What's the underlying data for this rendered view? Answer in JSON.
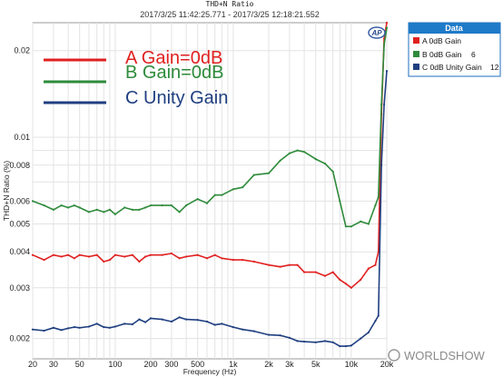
{
  "chart_data": {
    "type": "line",
    "title": "THD+N Ratio",
    "subtitle": "2017/3/25 11:42:25.771 - 2017/3/25 12:18:21.552",
    "xlabel": "Frequency (Hz)",
    "ylabel": "THD+N Ratio (%)",
    "x_scale": "log",
    "y_scale": "log",
    "xlim": [
      20,
      20000
    ],
    "ylim": [
      0.0017,
      0.025
    ],
    "grid": true,
    "x_ticks": [
      {
        "value": 20,
        "label": "20"
      },
      {
        "value": 30,
        "label": "30"
      },
      {
        "value": 50,
        "label": "50"
      },
      {
        "value": 100,
        "label": "100"
      },
      {
        "value": 200,
        "label": "200"
      },
      {
        "value": 300,
        "label": "300"
      },
      {
        "value": 500,
        "label": "500"
      },
      {
        "value": 1000,
        "label": "1k"
      },
      {
        "value": 2000,
        "label": "2k"
      },
      {
        "value": 3000,
        "label": "3k"
      },
      {
        "value": 5000,
        "label": "5k"
      },
      {
        "value": 10000,
        "label": "10k"
      },
      {
        "value": 20000,
        "label": "20k"
      }
    ],
    "y_ticks": [
      {
        "value": 0.002,
        "label": "0.002"
      },
      {
        "value": 0.003,
        "label": "0.003"
      },
      {
        "value": 0.004,
        "label": "0.004"
      },
      {
        "value": 0.005,
        "label": "0.005"
      },
      {
        "value": 0.006,
        "label": "0.006"
      },
      {
        "value": 0.008,
        "label": "0.008"
      },
      {
        "value": 0.01,
        "label": "0.01"
      },
      {
        "value": 0.02,
        "label": "0.02"
      }
    ],
    "series": [
      {
        "name": "A 0dB Gain",
        "color": "#e02020",
        "x": [
          20,
          25,
          30,
          35,
          40,
          45,
          50,
          60,
          70,
          80,
          90,
          100,
          120,
          140,
          160,
          180,
          200,
          250,
          300,
          350,
          400,
          500,
          600,
          700,
          800,
          1000,
          1200,
          1500,
          2000,
          2500,
          3000,
          3500,
          4000,
          5000,
          6000,
          7000,
          8000,
          9000,
          10000,
          12000,
          14000,
          16000,
          17000,
          18000,
          19000,
          20000
        ],
        "y": [
          0.0039,
          0.00375,
          0.0039,
          0.00385,
          0.0039,
          0.0038,
          0.0039,
          0.00385,
          0.0039,
          0.0037,
          0.00375,
          0.0039,
          0.00385,
          0.0039,
          0.0037,
          0.00385,
          0.0039,
          0.0039,
          0.00395,
          0.0038,
          0.00385,
          0.0039,
          0.0038,
          0.0039,
          0.0038,
          0.00375,
          0.00375,
          0.0037,
          0.0036,
          0.00355,
          0.0036,
          0.0036,
          0.0034,
          0.0034,
          0.0033,
          0.0034,
          0.0032,
          0.0031,
          0.003,
          0.0032,
          0.0035,
          0.0036,
          0.004,
          0.012,
          0.022,
          0.025
        ]
      },
      {
        "name": "B 0dB Gain",
        "color": "#2e8b3a",
        "x": [
          20,
          25,
          30,
          35,
          40,
          45,
          50,
          60,
          70,
          80,
          90,
          100,
          120,
          140,
          160,
          180,
          200,
          250,
          300,
          350,
          400,
          500,
          600,
          700,
          800,
          1000,
          1200,
          1500,
          2000,
          2500,
          3000,
          3500,
          4000,
          5000,
          6000,
          7000,
          8000,
          9000,
          10000,
          12000,
          14000,
          16000,
          17000,
          18000,
          19000,
          20000
        ],
        "y": [
          0.006,
          0.0058,
          0.0056,
          0.0058,
          0.0057,
          0.0058,
          0.0057,
          0.0055,
          0.0056,
          0.0055,
          0.0056,
          0.0054,
          0.0057,
          0.0056,
          0.0056,
          0.0057,
          0.0058,
          0.0058,
          0.0058,
          0.0055,
          0.0058,
          0.0061,
          0.0059,
          0.0063,
          0.0063,
          0.0066,
          0.0067,
          0.0074,
          0.0075,
          0.0083,
          0.0088,
          0.009,
          0.0089,
          0.0084,
          0.0081,
          0.0076,
          0.006,
          0.0049,
          0.0049,
          0.0051,
          0.005,
          0.0058,
          0.0062,
          0.013,
          0.021,
          0.024
        ]
      },
      {
        "name": "C 0dB Unity Gain",
        "color": "#1f3f80",
        "x": [
          20,
          25,
          30,
          35,
          40,
          45,
          50,
          60,
          70,
          80,
          90,
          100,
          120,
          140,
          160,
          180,
          200,
          250,
          300,
          350,
          400,
          500,
          600,
          700,
          800,
          1000,
          1200,
          1500,
          2000,
          2500,
          3000,
          3500,
          4000,
          5000,
          6000,
          7000,
          8000,
          9000,
          10000,
          12000,
          14000,
          16000,
          17000,
          18000,
          19000,
          20000
        ],
        "y": [
          0.00215,
          0.00213,
          0.00218,
          0.00214,
          0.00217,
          0.00219,
          0.00218,
          0.0022,
          0.00225,
          0.00219,
          0.00218,
          0.0022,
          0.00225,
          0.00224,
          0.00233,
          0.00228,
          0.00235,
          0.00233,
          0.00229,
          0.00237,
          0.00233,
          0.00232,
          0.00229,
          0.00223,
          0.00225,
          0.00219,
          0.00215,
          0.00212,
          0.00206,
          0.00205,
          0.00201,
          0.00196,
          0.00195,
          0.00194,
          0.00196,
          0.00194,
          0.00188,
          0.00188,
          0.00189,
          0.002,
          0.0021,
          0.0023,
          0.0024,
          0.008,
          0.013,
          0.017
        ]
      }
    ],
    "annotations": [
      {
        "text": "A Gain=0dB",
        "color": "#e02020"
      },
      {
        "text": "B Gain=0dB",
        "color": "#2e8b3a"
      },
      {
        "text": "C Unity Gain",
        "color": "#1f3f80"
      }
    ],
    "legend": {
      "title": "Data",
      "placement": "top-right outside",
      "items": [
        {
          "label": "A 0dB Gain",
          "suffix": "",
          "color": "#e02020"
        },
        {
          "label": "B 0dB Gain",
          "suffix": "6",
          "color": "#2e8b3a"
        },
        {
          "label": "C 0dB Unity Gain",
          "suffix": "12",
          "color": "#1f3f80"
        }
      ]
    },
    "logo": "AP",
    "watermark": "WORLDSHOW"
  }
}
